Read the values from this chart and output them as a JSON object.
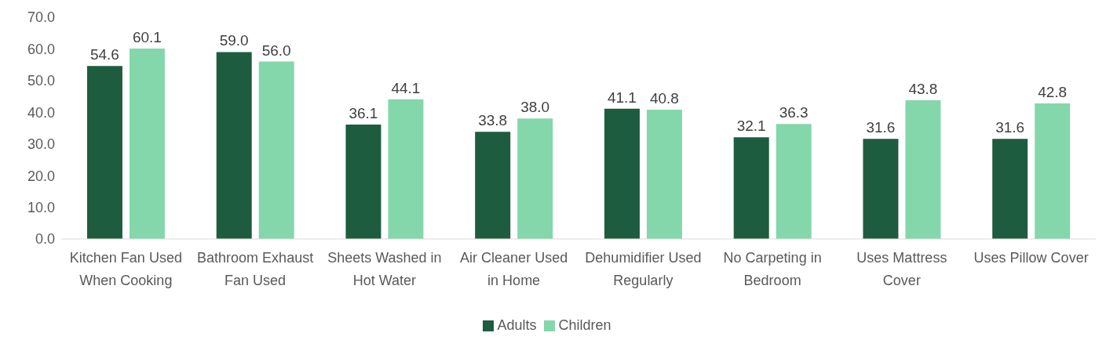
{
  "chart_data": {
    "type": "bar",
    "categories": [
      "Kitchen Fan Used When Cooking",
      "Bathroom Exhaust Fan Used",
      "Sheets Washed in Hot Water",
      "Air Cleaner Used in Home",
      "Dehumidifier Used Regularly",
      "No Carpeting in Bedroom",
      "Uses Mattress Cover",
      "Uses Pillow Cover"
    ],
    "series": [
      {
        "name": "Adults",
        "color": "#1e5c3f",
        "values": [
          54.6,
          59.0,
          36.1,
          33.8,
          41.1,
          32.1,
          31.6,
          31.6
        ],
        "value_labels": [
          "54.6",
          "59.0",
          "36.1",
          "33.8",
          "41.1",
          "32.1",
          "31.6",
          "31.6"
        ]
      },
      {
        "name": "Children",
        "color": "#84d7ab",
        "values": [
          60.1,
          56.0,
          44.1,
          38.0,
          40.8,
          36.3,
          43.8,
          42.8
        ],
        "value_labels": [
          "60.1",
          "56.0",
          "44.1",
          "38.0",
          "40.8",
          "36.3",
          "43.8",
          "42.8"
        ]
      }
    ],
    "ylim": [
      0,
      70
    ],
    "yticks": [
      {
        "value": 0,
        "label": "0.0"
      },
      {
        "value": 10,
        "label": "10.0"
      },
      {
        "value": 20,
        "label": "20.0"
      },
      {
        "value": 30,
        "label": "30.0"
      },
      {
        "value": 40,
        "label": "40.0"
      },
      {
        "value": 50,
        "label": "50.0"
      },
      {
        "value": 60,
        "label": "60.0"
      },
      {
        "value": 70,
        "label": "70.0"
      }
    ],
    "legend": "bottom"
  }
}
